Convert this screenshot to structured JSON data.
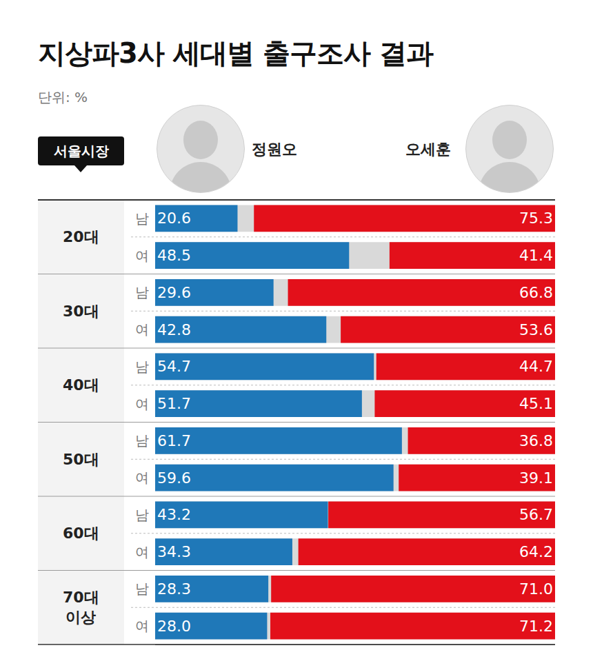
{
  "chart_data": {
    "type": "bar",
    "orientation": "horizontal",
    "title": "지상파3사 세대별 출구조사 결과",
    "subtitle": "단위: %",
    "annotations": [
      "서울시장"
    ],
    "groups": [
      "20대",
      "30대",
      "40대",
      "50대",
      "60대",
      "70대 이상"
    ],
    "categories": [
      "남",
      "여",
      "남",
      "여",
      "남",
      "여",
      "남",
      "여",
      "남",
      "여",
      "남",
      "여"
    ],
    "series": [
      {
        "name": "정원오",
        "color": "#1f78b8",
        "values": [
          20.6,
          48.5,
          29.6,
          42.8,
          54.7,
          51.7,
          61.7,
          59.6,
          43.2,
          34.3,
          28.3,
          28.0
        ],
        "value_labels": [
          "20.6",
          "48.5",
          "29.6",
          "42.8",
          "54.7",
          "51.7",
          "61.7",
          "59.6",
          "43.2",
          "34.3",
          "28.3",
          "28.0"
        ]
      },
      {
        "name": "오세훈",
        "color": "#e3101a",
        "values": [
          75.3,
          41.4,
          66.8,
          53.6,
          44.7,
          45.1,
          36.8,
          39.1,
          56.7,
          64.2,
          71.0,
          71.2
        ],
        "value_labels": [
          "75.3",
          "41.4",
          "66.8",
          "53.6",
          "44.7",
          "45.1",
          "36.8",
          "39.1",
          "56.7",
          "64.2",
          "71.0",
          "71.2"
        ]
      }
    ],
    "xlim": [
      0,
      100
    ],
    "data_labels": true,
    "tick_labels": "y",
    "grid": false
  }
}
